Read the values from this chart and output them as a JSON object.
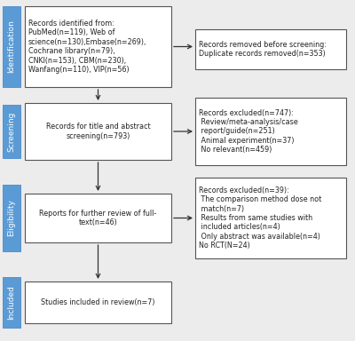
{
  "bg_color": "#ececec",
  "box_border_color": "#555555",
  "box_fill_color": "#ffffff",
  "side_label_fill": "#5b9bd5",
  "side_label_text_color": "#ffffff",
  "arrow_color": "#333333",
  "text_color": "#222222",
  "side_labels": [
    "Identification",
    "Screening",
    "Eligibility",
    "Included"
  ],
  "left_box0": "Records identified from:\nPubMed(n=119), Web of\nscience(n=130),Embase(n=269),\nCochrane library(n=79),\nCNKI(n=153), CBM(n=230),\nWanfang(n=110), VIP(n=56)",
  "left_box1": "Records for title and abstract\nscreening(n=793)",
  "left_box2": "Reports for further review of full-\ntext(n=46)",
  "left_box3": "Studies included in review(n=7)",
  "right_box0": "Records removed before screening:\nDuplicate records removed(n=353)",
  "right_box1": "Records excluded(n=747):\n Review/meta-analysis/case\n report/guide(n=251)\n Animal experiment(n=37)\n No relevant(n=459)",
  "right_box2": "Records excluded(n=39):\n The comparison method dose not\n match(n=7)\n Results from same studies with\n included articles(n=4)\n Only abstract was available(n=4)\nNo RCT(N=24)",
  "font_size_main": 5.8,
  "font_size_side": 6.5
}
